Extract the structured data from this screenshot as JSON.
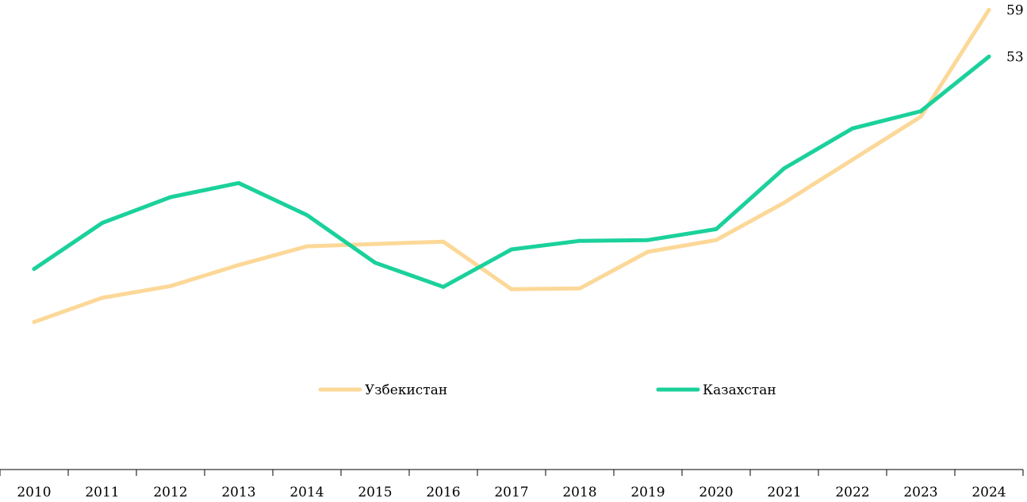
{
  "chart_data": {
    "type": "line",
    "title": "",
    "xlabel": "",
    "ylabel": "",
    "x": [
      "2010",
      "2011",
      "2012",
      "2013",
      "2014",
      "2015",
      "2016",
      "2017",
      "2018",
      "2019",
      "2020",
      "2021",
      "2022",
      "2023",
      "2024"
    ],
    "ylim": [
      0,
      60
    ],
    "grid": false,
    "legend_position": "center",
    "series": [
      {
        "name": "Узбекистан",
        "color": "#fcd898",
        "values": [
          19.0,
          22.1,
          23.6,
          26.3,
          28.7,
          29.0,
          29.3,
          23.2,
          23.3,
          28.0,
          29.5,
          34.3,
          39.8,
          45.3,
          59
        ],
        "end_label": "59"
      },
      {
        "name": "Казахстан",
        "color": "#1bd19b",
        "values": [
          25.8,
          31.7,
          35.0,
          36.8,
          32.7,
          26.6,
          23.5,
          28.3,
          29.4,
          29.5,
          30.9,
          38.7,
          43.8,
          46.0,
          53
        ],
        "end_label": "53"
      }
    ]
  }
}
